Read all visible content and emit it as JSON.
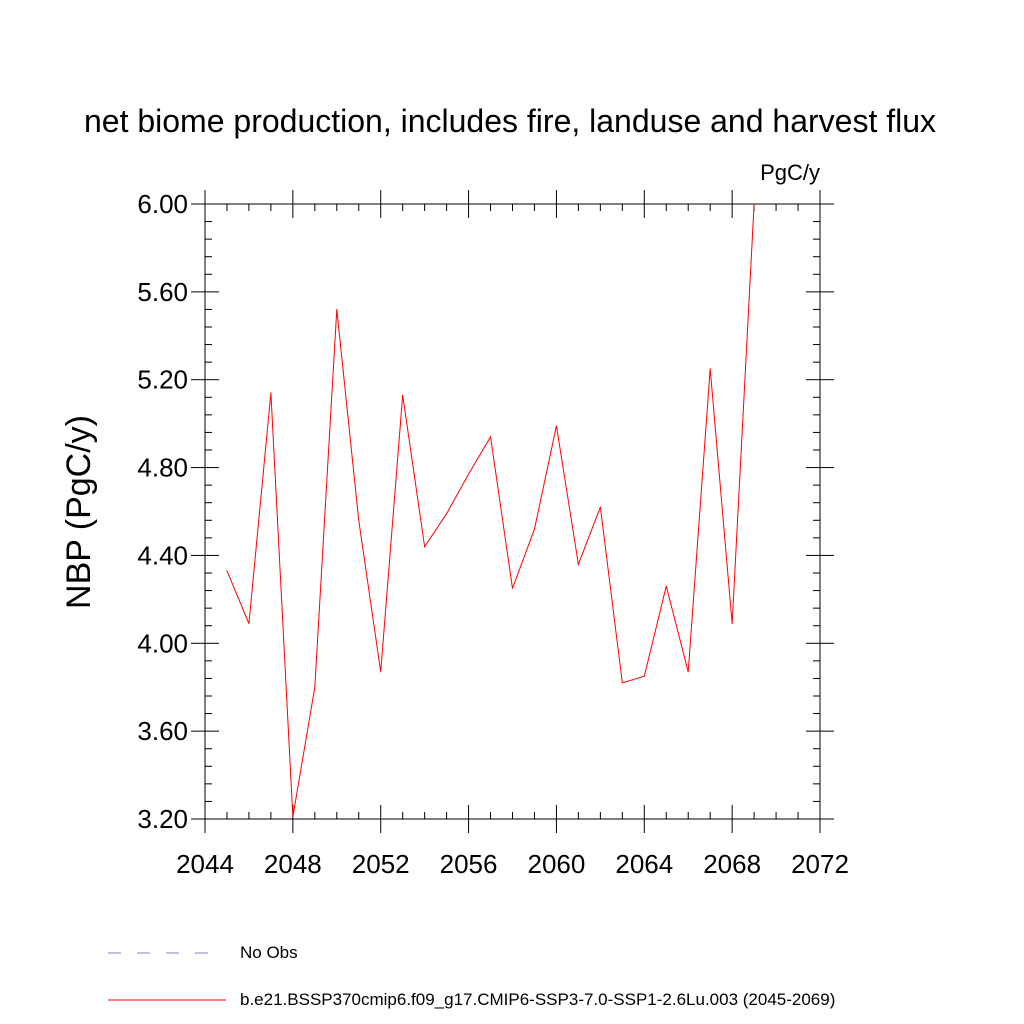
{
  "chart_data": {
    "type": "line",
    "title": "net biome production, includes fire, landuse and harvest flux",
    "units_label": "PgC/y",
    "ylabel": "NBP  (PgC/y)",
    "xlabel": "",
    "xlim": [
      2044,
      2072
    ],
    "ylim": [
      3.2,
      6.0
    ],
    "x_ticks": [
      "2044",
      "2048",
      "2052",
      "2056",
      "2060",
      "2064",
      "2068",
      "2072"
    ],
    "y_ticks": [
      "3.20",
      "3.60",
      "4.00",
      "4.40",
      "4.80",
      "5.20",
      "5.60",
      "6.00"
    ],
    "grid": false,
    "series": [
      {
        "name": "b.e21.BSSP370cmip6.f09_g17.CMIP6-SSP3-7.0-SSP1-2.6Lu.003 (2045-2069)",
        "color": "#ff0000",
        "x": [
          2045,
          2046,
          2047,
          2048,
          2049,
          2050,
          2051,
          2052,
          2053,
          2054,
          2055,
          2056,
          2057,
          2058,
          2059,
          2060,
          2061,
          2062,
          2063,
          2064,
          2065,
          2066,
          2067,
          2068,
          2069
        ],
        "y": [
          4.33,
          4.09,
          5.14,
          3.21,
          3.8,
          5.52,
          4.56,
          3.87,
          5.13,
          4.44,
          4.59,
          4.77,
          4.94,
          4.25,
          4.52,
          4.99,
          4.36,
          4.62,
          3.82,
          3.85,
          4.26,
          3.87,
          5.25,
          4.09,
          6.0
        ]
      }
    ],
    "legend": [
      {
        "label": "No Obs",
        "style": "dashed",
        "color": "#8080c0"
      },
      {
        "label": "b.e21.BSSP370cmip6.f09_g17.CMIP6-SSP3-7.0-SSP1-2.6Lu.003 (2045-2069)",
        "style": "solid",
        "color": "#ff0000"
      }
    ],
    "legend_position": "bottom-left"
  }
}
